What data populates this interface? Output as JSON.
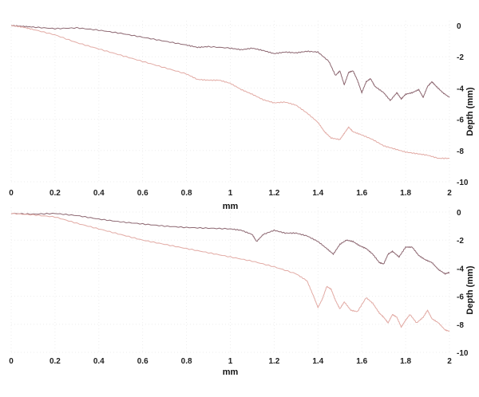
{
  "colors": {
    "series_dark": "#8c6670",
    "series_light": "#e2aaa4",
    "grid": "#ededed"
  },
  "chart_data": [
    {
      "type": "line",
      "xlabel": "mm",
      "ylabel": "Depth (mm)",
      "xlim": [
        0,
        2
      ],
      "ylim": [
        -10,
        0
      ],
      "xticks": [
        "0",
        "0.2",
        "0.4",
        "0.6",
        "0.8",
        "1",
        "1.2",
        "1.4",
        "1.6",
        "1.8",
        "2"
      ],
      "yticks": [
        "0",
        "-2",
        "-4",
        "-6",
        "-8",
        "-10"
      ],
      "grid": true,
      "series": [
        {
          "color": "#8c6670",
          "points": [
            [
              0,
              0
            ],
            [
              0.05,
              -0.05
            ],
            [
              0.1,
              -0.1
            ],
            [
              0.2,
              -0.2
            ],
            [
              0.3,
              -0.15
            ],
            [
              0.4,
              -0.3
            ],
            [
              0.5,
              -0.5
            ],
            [
              0.6,
              -0.75
            ],
            [
              0.7,
              -1.0
            ],
            [
              0.8,
              -1.25
            ],
            [
              0.85,
              -1.4
            ],
            [
              0.9,
              -1.35
            ],
            [
              1.0,
              -1.45
            ],
            [
              1.05,
              -1.55
            ],
            [
              1.1,
              -1.45
            ],
            [
              1.15,
              -1.6
            ],
            [
              1.2,
              -1.8
            ],
            [
              1.25,
              -1.7
            ],
            [
              1.3,
              -1.75
            ],
            [
              1.35,
              -1.65
            ],
            [
              1.4,
              -1.7
            ],
            [
              1.45,
              -2.3
            ],
            [
              1.48,
              -3.2
            ],
            [
              1.5,
              -2.9
            ],
            [
              1.52,
              -3.8
            ],
            [
              1.54,
              -3.0
            ],
            [
              1.56,
              -2.9
            ],
            [
              1.58,
              -3.5
            ],
            [
              1.6,
              -4.3
            ],
            [
              1.62,
              -3.6
            ],
            [
              1.64,
              -3.4
            ],
            [
              1.66,
              -3.9
            ],
            [
              1.7,
              -4.3
            ],
            [
              1.73,
              -4.8
            ],
            [
              1.76,
              -4.3
            ],
            [
              1.78,
              -4.7
            ],
            [
              1.8,
              -4.4
            ],
            [
              1.83,
              -4.3
            ],
            [
              1.86,
              -4.1
            ],
            [
              1.88,
              -4.6
            ],
            [
              1.9,
              -3.9
            ],
            [
              1.92,
              -3.6
            ],
            [
              1.94,
              -3.9
            ],
            [
              1.97,
              -4.3
            ],
            [
              2.0,
              -4.6
            ]
          ]
        },
        {
          "color": "#e2aaa4",
          "points": [
            [
              0,
              0
            ],
            [
              0.05,
              -0.1
            ],
            [
              0.1,
              -0.25
            ],
            [
              0.2,
              -0.6
            ],
            [
              0.3,
              -1.1
            ],
            [
              0.4,
              -1.5
            ],
            [
              0.5,
              -1.9
            ],
            [
              0.6,
              -2.3
            ],
            [
              0.7,
              -2.7
            ],
            [
              0.8,
              -3.1
            ],
            [
              0.85,
              -3.45
            ],
            [
              0.9,
              -3.5
            ],
            [
              0.95,
              -3.5
            ],
            [
              1.0,
              -3.7
            ],
            [
              1.05,
              -4.1
            ],
            [
              1.1,
              -4.4
            ],
            [
              1.15,
              -4.75
            ],
            [
              1.2,
              -4.95
            ],
            [
              1.25,
              -4.9
            ],
            [
              1.3,
              -5.1
            ],
            [
              1.35,
              -5.6
            ],
            [
              1.4,
              -6.2
            ],
            [
              1.43,
              -6.8
            ],
            [
              1.46,
              -7.2
            ],
            [
              1.5,
              -7.3
            ],
            [
              1.52,
              -6.9
            ],
            [
              1.54,
              -6.5
            ],
            [
              1.56,
              -6.8
            ],
            [
              1.6,
              -7.0
            ],
            [
              1.65,
              -7.3
            ],
            [
              1.7,
              -7.7
            ],
            [
              1.75,
              -7.9
            ],
            [
              1.8,
              -8.1
            ],
            [
              1.85,
              -8.2
            ],
            [
              1.9,
              -8.3
            ],
            [
              1.95,
              -8.5
            ],
            [
              2.0,
              -8.5
            ]
          ]
        }
      ]
    },
    {
      "type": "line",
      "xlabel": "mm",
      "ylabel": "Depth (mm)",
      "xlim": [
        0,
        2
      ],
      "ylim": [
        -10,
        0
      ],
      "xticks": [
        "0",
        "0.2",
        "0.4",
        "0.6",
        "0.8",
        "1",
        "1.2",
        "1.4",
        "1.6",
        "1.8",
        "2"
      ],
      "yticks": [
        "0",
        "-2",
        "-4",
        "-6",
        "-8",
        "-10"
      ],
      "grid": true,
      "series": [
        {
          "color": "#8c6670",
          "points": [
            [
              0,
              -0.1
            ],
            [
              0.1,
              -0.15
            ],
            [
              0.2,
              -0.1
            ],
            [
              0.3,
              -0.25
            ],
            [
              0.4,
              -0.5
            ],
            [
              0.5,
              -0.7
            ],
            [
              0.6,
              -0.85
            ],
            [
              0.7,
              -1.0
            ],
            [
              0.8,
              -1.1
            ],
            [
              0.9,
              -1.15
            ],
            [
              1.0,
              -1.2
            ],
            [
              1.05,
              -1.3
            ],
            [
              1.1,
              -1.6
            ],
            [
              1.12,
              -2.1
            ],
            [
              1.15,
              -1.6
            ],
            [
              1.2,
              -1.3
            ],
            [
              1.25,
              -1.5
            ],
            [
              1.3,
              -1.5
            ],
            [
              1.35,
              -1.7
            ],
            [
              1.4,
              -2.1
            ],
            [
              1.44,
              -2.6
            ],
            [
              1.47,
              -3.0
            ],
            [
              1.5,
              -2.3
            ],
            [
              1.53,
              -2.0
            ],
            [
              1.56,
              -2.1
            ],
            [
              1.59,
              -2.4
            ],
            [
              1.62,
              -2.6
            ],
            [
              1.65,
              -3.0
            ],
            [
              1.68,
              -3.6
            ],
            [
              1.7,
              -3.7
            ],
            [
              1.72,
              -3.0
            ],
            [
              1.74,
              -2.8
            ],
            [
              1.77,
              -3.2
            ],
            [
              1.8,
              -2.5
            ],
            [
              1.83,
              -2.5
            ],
            [
              1.86,
              -3.1
            ],
            [
              1.89,
              -3.4
            ],
            [
              1.92,
              -3.6
            ],
            [
              1.95,
              -4.1
            ],
            [
              1.98,
              -4.4
            ],
            [
              2.0,
              -4.3
            ]
          ]
        },
        {
          "color": "#e2aaa4",
          "points": [
            [
              0,
              -0.1
            ],
            [
              0.1,
              -0.2
            ],
            [
              0.2,
              -0.35
            ],
            [
              0.3,
              -0.8
            ],
            [
              0.4,
              -1.2
            ],
            [
              0.5,
              -1.6
            ],
            [
              0.6,
              -2.0
            ],
            [
              0.7,
              -2.3
            ],
            [
              0.8,
              -2.6
            ],
            [
              0.9,
              -2.9
            ],
            [
              1.0,
              -3.2
            ],
            [
              1.1,
              -3.5
            ],
            [
              1.2,
              -3.9
            ],
            [
              1.3,
              -4.4
            ],
            [
              1.35,
              -4.9
            ],
            [
              1.38,
              -6.0
            ],
            [
              1.4,
              -6.8
            ],
            [
              1.42,
              -6.2
            ],
            [
              1.44,
              -5.3
            ],
            [
              1.46,
              -5.5
            ],
            [
              1.48,
              -6.3
            ],
            [
              1.5,
              -6.9
            ],
            [
              1.52,
              -6.4
            ],
            [
              1.55,
              -7.0
            ],
            [
              1.58,
              -7.1
            ],
            [
              1.62,
              -6.1
            ],
            [
              1.65,
              -6.5
            ],
            [
              1.68,
              -7.2
            ],
            [
              1.7,
              -7.5
            ],
            [
              1.72,
              -7.9
            ],
            [
              1.74,
              -7.3
            ],
            [
              1.76,
              -7.5
            ],
            [
              1.78,
              -8.2
            ],
            [
              1.8,
              -7.7
            ],
            [
              1.82,
              -7.3
            ],
            [
              1.85,
              -7.9
            ],
            [
              1.88,
              -7.5
            ],
            [
              1.9,
              -7.0
            ],
            [
              1.92,
              -7.6
            ],
            [
              1.95,
              -7.9
            ],
            [
              1.98,
              -8.4
            ],
            [
              2.0,
              -8.5
            ]
          ]
        }
      ]
    }
  ]
}
